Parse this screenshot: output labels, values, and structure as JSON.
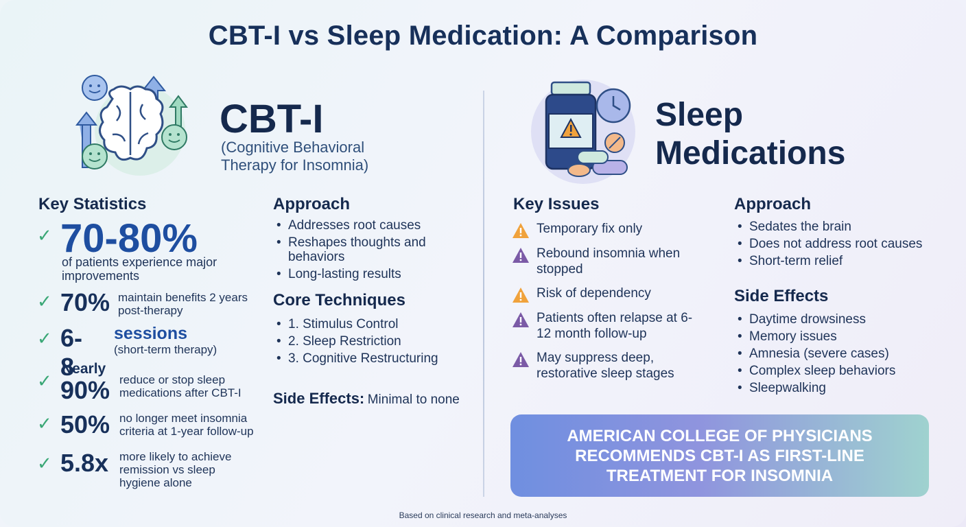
{
  "title": "CBT-I vs Sleep Medication: A Comparison",
  "cbt": {
    "name": "CBT-I",
    "subtitle": "(Cognitive Behavioral Therapy for Insomnia)",
    "key_stats_heading": "Key Statistics",
    "stats": [
      {
        "value": "70-80%",
        "text": "of patients experience major improvements"
      },
      {
        "value": "70%",
        "text": "maintain benefits 2 years post-therapy"
      },
      {
        "value": "6-8",
        "unit": "sessions",
        "text": "(short-term therapy)"
      },
      {
        "prefix": "Nearly",
        "value": "90%",
        "text": "reduce or stop sleep medications after CBT-I"
      },
      {
        "value": "50%",
        "text": "no longer meet insomnia criteria at 1-year follow-up"
      },
      {
        "value": "5.8x",
        "text": "more likely to achieve remission vs sleep hygiene alone"
      }
    ],
    "approach_heading": "Approach",
    "approach": [
      "Addresses root causes",
      "Reshapes thoughts and behaviors",
      "Long-lasting results"
    ],
    "techniques_heading": "Core Techniques",
    "techniques": [
      "1.  Stimulus Control",
      "2. Sleep Restriction",
      "3. Cognitive Restructuring"
    ],
    "side_effects_label": "Side Effects:",
    "side_effects_value": "Minimal to none"
  },
  "meds": {
    "name": "Sleep Medications",
    "key_issues_heading": "Key Issues",
    "issues": [
      {
        "text": "Temporary fix only",
        "color": "#f0a23c"
      },
      {
        "text": "Rebound insomnia when stopped",
        "color": "#7b5aa6"
      },
      {
        "text": "Risk of dependency",
        "color": "#f0a23c"
      },
      {
        "text": "Patients often relapse at 6-12 month follow-up",
        "color": "#7b5aa6"
      },
      {
        "text": "May suppress deep, restorative sleep stages",
        "color": "#7b5aa6"
      }
    ],
    "approach_heading": "Approach",
    "approach": [
      "Sedates the brain",
      "Does not address root causes",
      "Short-term relief"
    ],
    "side_effects_heading": "Side Effects",
    "side_effects": [
      "Daytime drowsiness",
      "Memory issues",
      "Amnesia (severe cases)",
      "Complex sleep behaviors",
      "Sleepwalking"
    ]
  },
  "banner": "AMERICAN COLLEGE OF PHYSICIANS RECOMMENDS CBT-I AS FIRST-LINE TREATMENT FOR INSOMNIA",
  "footer": "Based on clinical research and meta-analyses",
  "colors": {
    "accent_blue": "#1e4ea0",
    "check_green": "#3aa776",
    "warn_orange": "#f0a23c",
    "warn_purple": "#7b5aa6"
  }
}
